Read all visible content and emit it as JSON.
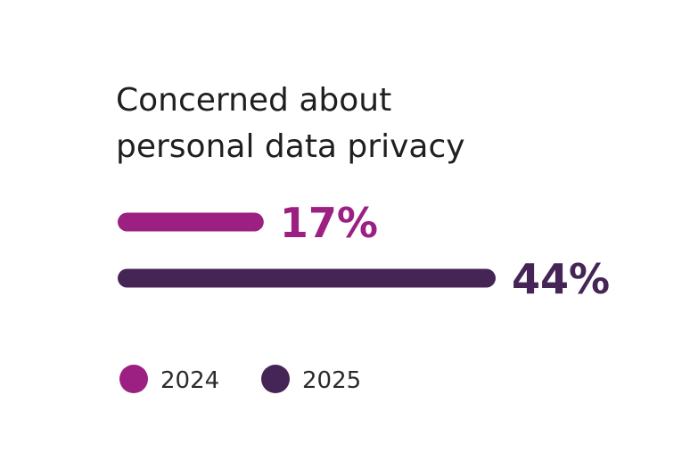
{
  "chart_data": {
    "type": "bar",
    "orientation": "horizontal",
    "title_lines": [
      "Concerned about",
      "personal data privacy"
    ],
    "categories": [
      "2024",
      "2025"
    ],
    "values": [
      17,
      44
    ],
    "value_labels": [
      "17%",
      "44%"
    ],
    "unit": "%",
    "xlim": [
      0,
      44
    ],
    "grid": false,
    "legend": {
      "placement": "bottom-left",
      "entries": [
        {
          "label": "2024",
          "color": "#9c1f82"
        },
        {
          "label": "2025",
          "color": "#452556"
        }
      ]
    },
    "colors": {
      "2024": "#9c1f82",
      "2025": "#452556",
      "title": "#1f1f1f",
      "legend_text": "#2b2b2b"
    }
  }
}
